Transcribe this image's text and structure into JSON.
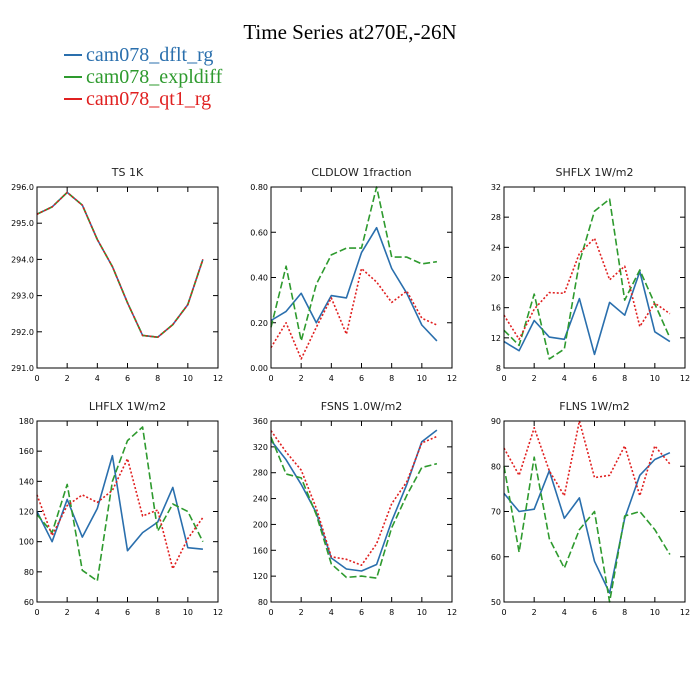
{
  "page": {
    "title": "Time Series at270E,-26N"
  },
  "legend": [
    {
      "name": "cam078_dflt_rg",
      "color": "#2a6fad"
    },
    {
      "name": "cam078_expldiff",
      "color": "#2e9a2e"
    },
    {
      "name": "cam078_qt1_rg",
      "color": "#e02020"
    }
  ],
  "chart_data": [
    {
      "type": "line",
      "title": "TS   1K",
      "x": [
        0,
        1,
        2,
        3,
        4,
        5,
        6,
        7,
        8,
        9,
        10,
        11
      ],
      "xlim": [
        0,
        12
      ],
      "xticks": [
        0,
        2,
        4,
        6,
        8,
        10,
        12
      ],
      "ylim": [
        291,
        296
      ],
      "yticks": [
        291,
        292,
        293,
        294,
        295,
        296
      ],
      "yticklabels": [
        "291.0",
        "292.0",
        "293.0",
        "294.0",
        "295.0",
        "296.0"
      ],
      "series": [
        {
          "name": "cam078_dflt_rg",
          "color": "#2a6fad",
          "style": "solid",
          "values": [
            295.25,
            295.45,
            295.85,
            295.5,
            294.55,
            293.8,
            292.8,
            291.9,
            291.85,
            292.2,
            292.75,
            294.0
          ]
        },
        {
          "name": "cam078_expldiff",
          "color": "#2e9a2e",
          "style": "dashed",
          "values": [
            295.25,
            295.45,
            295.85,
            295.5,
            294.55,
            293.8,
            292.8,
            291.9,
            291.85,
            292.2,
            292.75,
            294.0
          ]
        },
        {
          "name": "cam078_qt1_rg",
          "color": "#e02020",
          "style": "dotted",
          "values": [
            295.25,
            295.45,
            295.85,
            295.5,
            294.55,
            293.8,
            292.8,
            291.9,
            291.85,
            292.2,
            292.75,
            294.0
          ]
        }
      ]
    },
    {
      "type": "line",
      "title": "CLDLOW   1fraction",
      "x": [
        0,
        1,
        2,
        3,
        4,
        5,
        6,
        7,
        8,
        9,
        10,
        11
      ],
      "xlim": [
        0,
        12
      ],
      "xticks": [
        0,
        2,
        4,
        6,
        8,
        10,
        12
      ],
      "ylim": [
        0,
        0.8
      ],
      "yticks": [
        0,
        0.2,
        0.4,
        0.6,
        0.8
      ],
      "yticklabels": [
        "0.00",
        "0.20",
        "0.40",
        "0.60",
        "0.80"
      ],
      "series": [
        {
          "name": "cam078_dflt_rg",
          "color": "#2a6fad",
          "style": "solid",
          "values": [
            0.21,
            0.25,
            0.33,
            0.2,
            0.32,
            0.31,
            0.51,
            0.62,
            0.44,
            0.33,
            0.19,
            0.12
          ]
        },
        {
          "name": "cam078_expldiff",
          "color": "#2e9a2e",
          "style": "dashed",
          "values": [
            0.18,
            0.45,
            0.12,
            0.37,
            0.5,
            0.53,
            0.53,
            0.8,
            0.49,
            0.49,
            0.46,
            0.47
          ]
        },
        {
          "name": "cam078_qt1_rg",
          "color": "#e02020",
          "style": "dotted",
          "values": [
            0.09,
            0.2,
            0.04,
            0.18,
            0.31,
            0.15,
            0.44,
            0.38,
            0.29,
            0.34,
            0.22,
            0.19
          ]
        }
      ]
    },
    {
      "type": "line",
      "title": "SHFLX   1W/m2",
      "x": [
        0,
        1,
        2,
        3,
        4,
        5,
        6,
        7,
        8,
        9,
        10,
        11
      ],
      "xlim": [
        0,
        12
      ],
      "xticks": [
        0,
        2,
        4,
        6,
        8,
        10,
        12
      ],
      "ylim": [
        8,
        32
      ],
      "yticks": [
        8,
        12,
        16,
        20,
        24,
        28,
        32
      ],
      "yticklabels": [
        "8",
        "12",
        "16",
        "20",
        "24",
        "28",
        "32"
      ],
      "series": [
        {
          "name": "cam078_dflt_rg",
          "color": "#2a6fad",
          "style": "solid",
          "values": [
            11.5,
            10.3,
            14.3,
            12.1,
            11.8,
            17.2,
            9.8,
            16.7,
            15.0,
            20.8,
            12.8,
            11.5
          ]
        },
        {
          "name": "cam078_expldiff",
          "color": "#2e9a2e",
          "style": "dashed",
          "values": [
            13.0,
            11.0,
            17.8,
            9.2,
            10.5,
            22.0,
            28.8,
            30.4,
            17.0,
            21.0,
            16.5,
            12.0
          ]
        },
        {
          "name": "cam078_qt1_rg",
          "color": "#e02020",
          "style": "dotted",
          "values": [
            15.0,
            11.8,
            15.8,
            18.0,
            17.9,
            23.2,
            25.2,
            19.7,
            21.5,
            13.5,
            16.6,
            15.2
          ]
        }
      ]
    },
    {
      "type": "line",
      "title": "LHFLX   1W/m2",
      "x": [
        0,
        1,
        2,
        3,
        4,
        5,
        6,
        7,
        8,
        9,
        10,
        11
      ],
      "xlim": [
        0,
        12
      ],
      "xticks": [
        0,
        2,
        4,
        6,
        8,
        10,
        12
      ],
      "ylim": [
        60,
        180
      ],
      "yticks": [
        60,
        80,
        100,
        120,
        140,
        160,
        180
      ],
      "yticklabels": [
        "60",
        "80",
        "100",
        "120",
        "140",
        "160",
        "180"
      ],
      "series": [
        {
          "name": "cam078_dflt_rg",
          "color": "#2a6fad",
          "style": "solid",
          "values": [
            120,
            100,
            128,
            103,
            122,
            157,
            94,
            106,
            113,
            136,
            96,
            95
          ]
        },
        {
          "name": "cam078_expldiff",
          "color": "#2e9a2e",
          "style": "dashed",
          "values": [
            118,
            106,
            138,
            81,
            74,
            140,
            167,
            176,
            107,
            125,
            120,
            100
          ]
        },
        {
          "name": "cam078_qt1_rg",
          "color": "#e02020",
          "style": "dotted",
          "values": [
            131,
            104,
            124,
            131,
            126,
            134,
            155,
            117,
            121,
            82,
            102,
            116
          ]
        }
      ]
    },
    {
      "type": "line",
      "title": "FSNS   1.0W/m2",
      "x": [
        0,
        1,
        2,
        3,
        4,
        5,
        6,
        7,
        8,
        9,
        10,
        11
      ],
      "xlim": [
        0,
        12
      ],
      "xticks": [
        0,
        2,
        4,
        6,
        8,
        10,
        12
      ],
      "ylim": [
        80,
        360
      ],
      "yticks": [
        80,
        120,
        160,
        200,
        240,
        280,
        320,
        360
      ],
      "yticklabels": [
        "80",
        "120",
        "160",
        "200",
        "240",
        "280",
        "320",
        "360"
      ],
      "series": [
        {
          "name": "cam078_dflt_rg",
          "color": "#2a6fad",
          "style": "solid",
          "values": [
            330,
            300,
            262,
            218,
            148,
            131,
            128,
            138,
            205,
            262,
            328,
            346
          ]
        },
        {
          "name": "cam078_expldiff",
          "color": "#2e9a2e",
          "style": "dashed",
          "values": [
            335,
            278,
            272,
            215,
            139,
            118,
            120,
            117,
            195,
            245,
            288,
            294
          ]
        },
        {
          "name": "cam078_qt1_rg",
          "color": "#e02020",
          "style": "dotted",
          "values": [
            345,
            312,
            284,
            225,
            150,
            146,
            137,
            170,
            232,
            266,
            326,
            336
          ]
        }
      ]
    },
    {
      "type": "line",
      "title": "FLNS   1W/m2",
      "x": [
        0,
        1,
        2,
        3,
        4,
        5,
        6,
        7,
        8,
        9,
        10,
        11
      ],
      "xlim": [
        0,
        12
      ],
      "xticks": [
        0,
        2,
        4,
        6,
        8,
        10,
        12
      ],
      "ylim": [
        50,
        90
      ],
      "yticks": [
        50,
        60,
        70,
        80,
        90
      ],
      "yticklabels": [
        "50",
        "60",
        "70",
        "80",
        "90"
      ],
      "series": [
        {
          "name": "cam078_dflt_rg",
          "color": "#2a6fad",
          "style": "solid",
          "values": [
            74,
            70,
            70.5,
            79,
            68.5,
            73,
            59,
            52,
            68.5,
            78,
            81.5,
            83
          ]
        },
        {
          "name": "cam078_expldiff",
          "color": "#2e9a2e",
          "style": "dashed",
          "values": [
            80,
            61,
            82,
            64,
            57.5,
            66,
            70,
            50,
            69,
            70,
            66,
            60.5
          ]
        },
        {
          "name": "cam078_qt1_rg",
          "color": "#e02020",
          "style": "dotted",
          "values": [
            84,
            78,
            88.5,
            79,
            73.5,
            90,
            77.5,
            78,
            84.5,
            73.5,
            84.5,
            80.5
          ]
        }
      ]
    }
  ]
}
